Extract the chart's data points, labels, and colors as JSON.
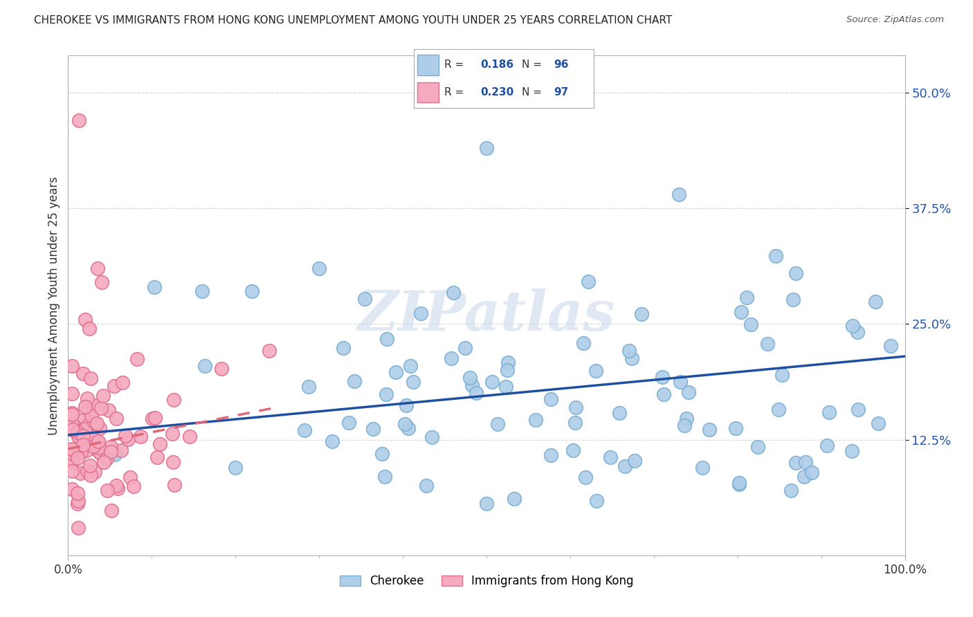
{
  "title": "CHEROKEE VS IMMIGRANTS FROM HONG KONG UNEMPLOYMENT AMONG YOUTH UNDER 25 YEARS CORRELATION CHART",
  "source": "Source: ZipAtlas.com",
  "ylabel": "Unemployment Among Youth under 25 years",
  "ytick_labels": [
    "12.5%",
    "25.0%",
    "37.5%",
    "50.0%"
  ],
  "ytick_values": [
    0.125,
    0.25,
    0.375,
    0.5
  ],
  "xlim": [
    0,
    1.0
  ],
  "ylim": [
    0.0,
    0.54
  ],
  "cherokee_color": "#aecde8",
  "cherokee_edge_color": "#7aafd4",
  "hk_color": "#f5aabf",
  "hk_edge_color": "#e07090",
  "cherokee_line_color": "#1e4fa0",
  "hk_line_color": "#e06878",
  "watermark": "ZIPatlas",
  "background_color": "#ffffff",
  "grid_color": "#d8d8d8",
  "legend_r1": "R = ",
  "legend_r1_val": "0.186",
  "legend_n1": "N = ",
  "legend_n1_val": "96",
  "legend_r2": "R = ",
  "legend_r2_val": "0.230",
  "legend_n2": "N = ",
  "legend_n2_val": "97",
  "cherokee_line_x0": 0.0,
  "cherokee_line_y0": 0.13,
  "cherokee_line_x1": 1.0,
  "cherokee_line_y1": 0.215,
  "hk_line_x0": 0.0,
  "hk_line_y0": 0.115,
  "hk_line_x1": 0.25,
  "hk_line_y1": 0.16
}
